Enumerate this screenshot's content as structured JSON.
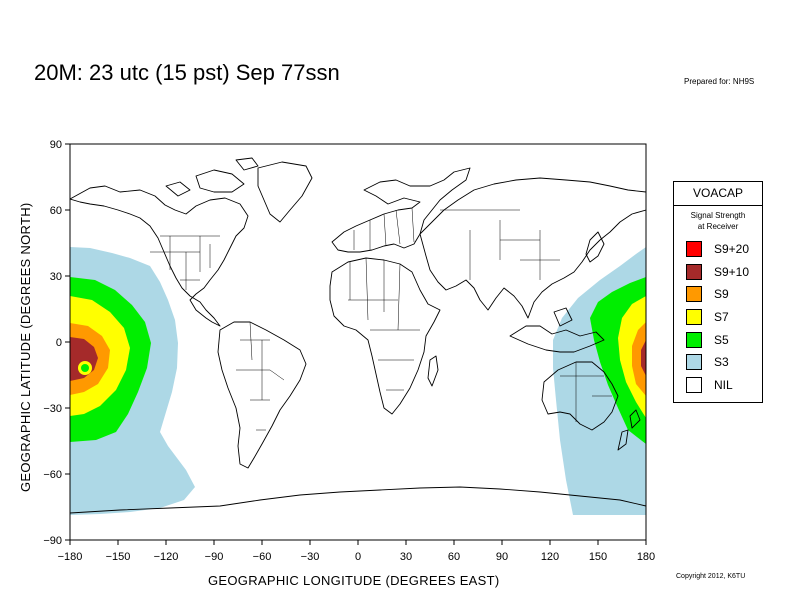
{
  "header": {
    "title": "20M:  23 utc (15 pst) Sep 77ssn",
    "prepared": "Prepared for: NH9S",
    "copyright": "Copyright 2012, K6TU"
  },
  "axes": {
    "x_label": "GEOGRAPHIC LONGITUDE (DEGREES EAST)",
    "y_label": "GEOGRAPHIC LATITUDE (DEGREES NORTH)",
    "x_ticks": [
      "−180",
      "−150",
      "−120",
      "−90",
      "−60",
      "−30",
      "0",
      "30",
      "60",
      "90",
      "120",
      "150",
      "180"
    ],
    "y_ticks": [
      "90",
      "60",
      "30",
      "0",
      "−30",
      "−60",
      "−90"
    ],
    "x_range": [
      -180,
      180
    ],
    "y_range": [
      -90,
      90
    ]
  },
  "legend": {
    "title": "VOACAP",
    "subtitle_line1": "Signal Strength",
    "subtitle_line2": "at Receiver",
    "items": [
      {
        "label": "S9+20",
        "color": "#ff0000"
      },
      {
        "label": "S9+10",
        "color": "#a52a2a"
      },
      {
        "label": "S9",
        "color": "#ff9900"
      },
      {
        "label": "S7",
        "color": "#ffff00"
      },
      {
        "label": "S5",
        "color": "#00ee00"
      },
      {
        "label": "S3",
        "color": "#add8e6"
      },
      {
        "label": "NIL",
        "color": "#ffffff"
      }
    ]
  },
  "map": {
    "coverage_center_lon": -172,
    "coverage_center_lat": -12
  }
}
